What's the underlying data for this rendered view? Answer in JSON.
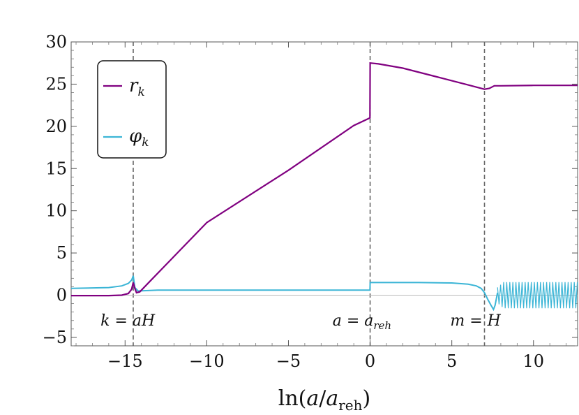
{
  "chart_data": {
    "type": "line",
    "title": "",
    "xlabel": "ln(a/a_reh)",
    "xlabel_parts": {
      "prefix": "ln(",
      "var": "a",
      "slash": "/",
      "var2": "a",
      "sub": "reh",
      "suffix": ")"
    },
    "ylabel": "",
    "xlim": [
      -18.3,
      12.7
    ],
    "ylim": [
      -6,
      30
    ],
    "x_ticks": [
      -15,
      -10,
      -5,
      0,
      5,
      10
    ],
    "x_tick_labels": [
      "−15",
      "−10",
      "−5",
      "0",
      "5",
      "10"
    ],
    "y_ticks": [
      -5,
      0,
      5,
      10,
      15,
      20,
      25,
      30
    ],
    "y_tick_labels": [
      "−5",
      "0",
      "5",
      "10",
      "15",
      "20",
      "25",
      "30"
    ],
    "grid": false,
    "legend_position": "top-left",
    "colors": {
      "r_k": "#800080",
      "phi_k": "#3bb5d6",
      "vline": "#666666",
      "zero_line": "#bbbbbb"
    },
    "vertical_lines": [
      -14.5,
      0,
      7
    ],
    "annotations": [
      {
        "text": "k = aH",
        "x": -16.5,
        "y": -3.6
      },
      {
        "text": "a = a_reh",
        "x": -2.3,
        "y": -3.6
      },
      {
        "text": "m = H",
        "x": 4.9,
        "y": -3.6
      }
    ],
    "annotation_labels": {
      "k_aH": {
        "lhs": "k",
        "rhs": "aH"
      },
      "a_areh": {
        "lhs": "a",
        "rhs": "a",
        "sub": "reh"
      },
      "m_H": {
        "lhs": "m",
        "rhs": "H"
      }
    },
    "series": [
      {
        "name": "r_k",
        "legend_main": "r",
        "legend_sub": "k",
        "color": "#800080",
        "x": [
          -18.3,
          -16,
          -15.2,
          -14.8,
          -14.6,
          -14.5,
          -14.4,
          -14.3,
          -14.1,
          -13.5,
          -10,
          -5,
          -1,
          -0.01,
          0,
          0.5,
          2,
          4,
          6,
          7,
          7.3,
          7.6,
          8,
          10,
          12.7
        ],
        "y": [
          -0.05,
          -0.05,
          0.0,
          0.2,
          0.7,
          1.5,
          0.8,
          0.3,
          0.4,
          1.6,
          8.6,
          14.8,
          20.1,
          21.0,
          27.5,
          27.4,
          26.9,
          25.9,
          24.9,
          24.4,
          24.5,
          24.8,
          24.8,
          24.85,
          24.85
        ]
      },
      {
        "name": "phi_k",
        "legend_main": "φ",
        "legend_sub": "k",
        "color": "#3bb5d6",
        "x": [
          -18.3,
          -16,
          -15.2,
          -14.8,
          -14.6,
          -14.5,
          -14.4,
          -14.2,
          -13,
          -10,
          -5,
          -1,
          -0.01,
          0,
          0.5,
          3,
          5,
          6,
          6.5,
          6.8,
          7.0,
          7.2,
          7.4,
          7.55,
          7.65,
          7.8
        ],
        "y": [
          0.8,
          0.9,
          1.1,
          1.4,
          1.8,
          2.3,
          0.9,
          0.5,
          0.6,
          0.6,
          0.6,
          0.6,
          0.6,
          1.5,
          1.5,
          1.5,
          1.45,
          1.3,
          1.1,
          0.8,
          0.3,
          -0.5,
          -1.2,
          -1.7,
          -1.2,
          0.3
        ],
        "oscillation": {
          "x_start": 7.8,
          "x_end": 12.7,
          "amplitude": 1.55
        }
      }
    ]
  }
}
